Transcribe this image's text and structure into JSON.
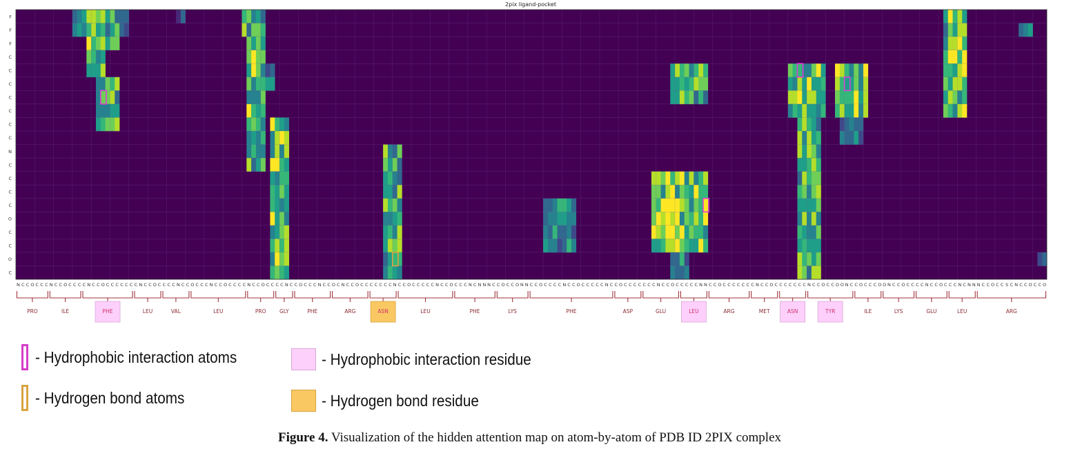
{
  "chart_data": {
    "type": "heatmap",
    "title": "2pix ligand-pocket",
    "y_labels": [
      "F",
      "F",
      "F",
      "C",
      "C",
      "C",
      "C",
      "C",
      "C",
      "C",
      "N",
      "C",
      "C",
      "C",
      "C",
      "O",
      "C",
      "C",
      "O",
      "C"
    ],
    "x_labels": "NCCOCCCNCCOCCCCNCCOCCCCCCCNCCOCCCCNCCOCCCNCCOCCCCNCCOCCCCNCCOCCCNCCOCNCCOCCCCCCCNCCOCCCCCNCCOCCCNCNNNCCOCCONNCCOCCCCNCCOCCCCCNCCOCCCCCCCNCCOCCCCCNNCCOCCCCCCCNCCOCCCCCCCNCCOCCOONCCOCCCOONCCOCCCCNCCOCCCNCNNNCCOCCSCNCCOCCONNCCOCCCCCCCONCCOCCCCNCCOCCCCNNCCOCCCOONCCOCCCCNCCOCCCNCNNOO",
    "columns_count": 219,
    "colormap": [
      "#440154",
      "#482878",
      "#3e4989",
      "#31688e",
      "#26828e",
      "#1f9e89",
      "#35b779",
      "#6ece58",
      "#b5de2b",
      "#fde725"
    ],
    "residues": [
      {
        "name": "PRO",
        "start": 0,
        "end": 7,
        "highlight": "none"
      },
      {
        "name": "ILE",
        "start": 7,
        "end": 14,
        "highlight": "none"
      },
      {
        "name": "PHE",
        "start": 14,
        "end": 25,
        "highlight": "hydrophobic"
      },
      {
        "name": "LEU",
        "start": 25,
        "end": 31,
        "highlight": "none"
      },
      {
        "name": "VAL",
        "start": 31,
        "end": 37,
        "highlight": "none"
      },
      {
        "name": "LEU",
        "start": 37,
        "end": 49,
        "highlight": "none"
      },
      {
        "name": "PRO",
        "start": 49,
        "end": 55,
        "highlight": "none"
      },
      {
        "name": "GLY",
        "start": 55,
        "end": 59,
        "highlight": "none"
      },
      {
        "name": "PHE",
        "start": 59,
        "end": 67,
        "highlight": "none"
      },
      {
        "name": "ARG",
        "start": 67,
        "end": 75,
        "highlight": "none"
      },
      {
        "name": "ASN",
        "start": 75,
        "end": 81,
        "highlight": "hbond"
      },
      {
        "name": "LEU",
        "start": 81,
        "end": 93,
        "highlight": "none"
      },
      {
        "name": "PHE",
        "start": 93,
        "end": 102,
        "highlight": "none"
      },
      {
        "name": "LYS",
        "start": 102,
        "end": 109,
        "highlight": "none"
      },
      {
        "name": "PHE",
        "start": 109,
        "end": 127,
        "highlight": "none"
      },
      {
        "name": "ASP",
        "start": 127,
        "end": 133,
        "highlight": "none"
      },
      {
        "name": "GLU",
        "start": 133,
        "end": 141,
        "highlight": "none"
      },
      {
        "name": "LEU",
        "start": 141,
        "end": 147,
        "highlight": "hydrophobic"
      },
      {
        "name": "ARG",
        "start": 147,
        "end": 156,
        "highlight": "none"
      },
      {
        "name": "MET",
        "start": 156,
        "end": 162,
        "highlight": "none"
      },
      {
        "name": "ASN",
        "start": 162,
        "end": 168,
        "highlight": "hydrophobic"
      },
      {
        "name": "TYR",
        "start": 168,
        "end": 178,
        "highlight": "hydrophobic"
      },
      {
        "name": "ILE",
        "start": 178,
        "end": 184,
        "highlight": "none"
      },
      {
        "name": "LYS",
        "start": 184,
        "end": 191,
        "highlight": "none"
      },
      {
        "name": "GLU",
        "start": 191,
        "end": 198,
        "highlight": "none"
      },
      {
        "name": "LEU",
        "start": 198,
        "end": 204,
        "highlight": "none"
      },
      {
        "name": "ARG",
        "start": 204,
        "end": 219,
        "highlight": "none"
      }
    ],
    "hot_spots": [
      {
        "rows": [
          0,
          1
        ],
        "cols": [
          12,
          14
        ],
        "value": 0.55
      },
      {
        "rows": [
          0,
          4
        ],
        "cols": [
          15,
          16
        ],
        "value": 0.95
      },
      {
        "rows": [
          0,
          4
        ],
        "cols": [
          17,
          18
        ],
        "value": 0.8
      },
      {
        "rows": [
          0,
          2
        ],
        "cols": [
          19,
          21
        ],
        "value": 0.7
      },
      {
        "rows": [
          0,
          1
        ],
        "cols": [
          22,
          23
        ],
        "value": 0.45
      },
      {
        "rows": [
          5,
          8
        ],
        "cols": [
          17,
          21
        ],
        "value": 0.75
      },
      {
        "rows": [
          0,
          0
        ],
        "cols": [
          34,
          35
        ],
        "value": 0.25
      },
      {
        "rows": [
          0,
          1
        ],
        "cols": [
          48,
          52
        ],
        "value": 0.75
      },
      {
        "rows": [
          2,
          11
        ],
        "cols": [
          49,
          52
        ],
        "value": 0.8
      },
      {
        "rows": [
          4,
          5
        ],
        "cols": [
          53,
          54
        ],
        "value": 0.5
      },
      {
        "rows": [
          8,
          19
        ],
        "cols": [
          54,
          57
        ],
        "value": 0.85
      },
      {
        "rows": [
          10,
          19
        ],
        "cols": [
          78,
          81
        ],
        "value": 0.8
      },
      {
        "rows": [
          14,
          17
        ],
        "cols": [
          112,
          118
        ],
        "value": 0.55
      },
      {
        "rows": [
          4,
          6
        ],
        "cols": [
          139,
          146
        ],
        "value": 0.75
      },
      {
        "rows": [
          12,
          17
        ],
        "cols": [
          135,
          146
        ],
        "value": 0.9
      },
      {
        "rows": [
          18,
          19
        ],
        "cols": [
          139,
          142
        ],
        "value": 0.55
      },
      {
        "rows": [
          4,
          7
        ],
        "cols": [
          164,
          171
        ],
        "value": 0.9
      },
      {
        "rows": [
          8,
          19
        ],
        "cols": [
          166,
          170
        ],
        "value": 0.8
      },
      {
        "rows": [
          4,
          7
        ],
        "cols": [
          174,
          180
        ],
        "value": 0.85
      },
      {
        "rows": [
          8,
          9
        ],
        "cols": [
          175,
          179
        ],
        "value": 0.45
      },
      {
        "rows": [
          0,
          7
        ],
        "cols": [
          197,
          201
        ],
        "value": 0.85
      },
      {
        "rows": [
          1,
          1
        ],
        "cols": [
          213,
          215
        ],
        "value": 0.45
      },
      {
        "rows": [
          18,
          18
        ],
        "cols": [
          217,
          218
        ],
        "value": 0.5
      }
    ],
    "hydrophobic_atom_boxes": [
      {
        "row": 6,
        "col": 18
      },
      {
        "row": 4,
        "col": 166
      },
      {
        "row": 5,
        "col": 176
      },
      {
        "row": 14,
        "col": 146
      }
    ],
    "hbond_atom_boxes": [
      {
        "row": 18,
        "col": 80
      }
    ]
  },
  "legend": {
    "hydrophobic_atoms": "- Hydrophobic interaction atoms",
    "hbond_atoms": "- Hydrogen bond atoms",
    "hydrophobic_residue": "- Hydrophobic interaction residue",
    "hbond_residue": "- Hydrogen bond residue"
  },
  "caption": {
    "label": "Figure 4.",
    "text": " Visualization of the hidden attention map on atom-by-atom of PDB ID 2PIX complex"
  }
}
